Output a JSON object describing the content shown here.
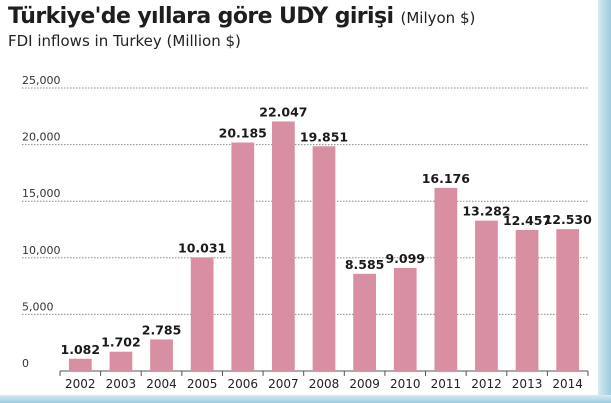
{
  "colors": {
    "bar": "#d78fa1",
    "grid": "#8c8c8c",
    "axis": "#555555",
    "text": "#1e1e1e",
    "edge": "#9ecbdc"
  },
  "chart_data": {
    "type": "bar",
    "title": "Türkiye'de yıllara göre UDY girişi",
    "title_unit": "(Milyon $)",
    "subtitle": "FDI inflows in Turkey (Million $)",
    "xlabel": "",
    "ylabel": "",
    "ylim": [
      0,
      25000
    ],
    "yticks": [
      {
        "value": 0,
        "label": "0"
      },
      {
        "value": 5000,
        "label": "5,000"
      },
      {
        "value": 10000,
        "label": "10,000"
      },
      {
        "value": 15000,
        "label": "15,000"
      },
      {
        "value": 20000,
        "label": "20,000"
      },
      {
        "value": 25000,
        "label": "25,000"
      }
    ],
    "grid": true,
    "categories": [
      "2002",
      "2003",
      "2004",
      "2005",
      "2006",
      "2007",
      "2008",
      "2009",
      "2010",
      "2011",
      "2012",
      "2013",
      "2014"
    ],
    "values": [
      1082,
      1702,
      2785,
      10031,
      20185,
      22047,
      19851,
      8585,
      9099,
      16176,
      13282,
      12457,
      12530
    ],
    "value_labels": [
      "1.082",
      "1.702",
      "2.785",
      "10.031",
      "20.185",
      "22.047",
      "19.851",
      "8.585",
      "9.099",
      "16.176",
      "13.282",
      "12.457",
      "12.530"
    ]
  }
}
